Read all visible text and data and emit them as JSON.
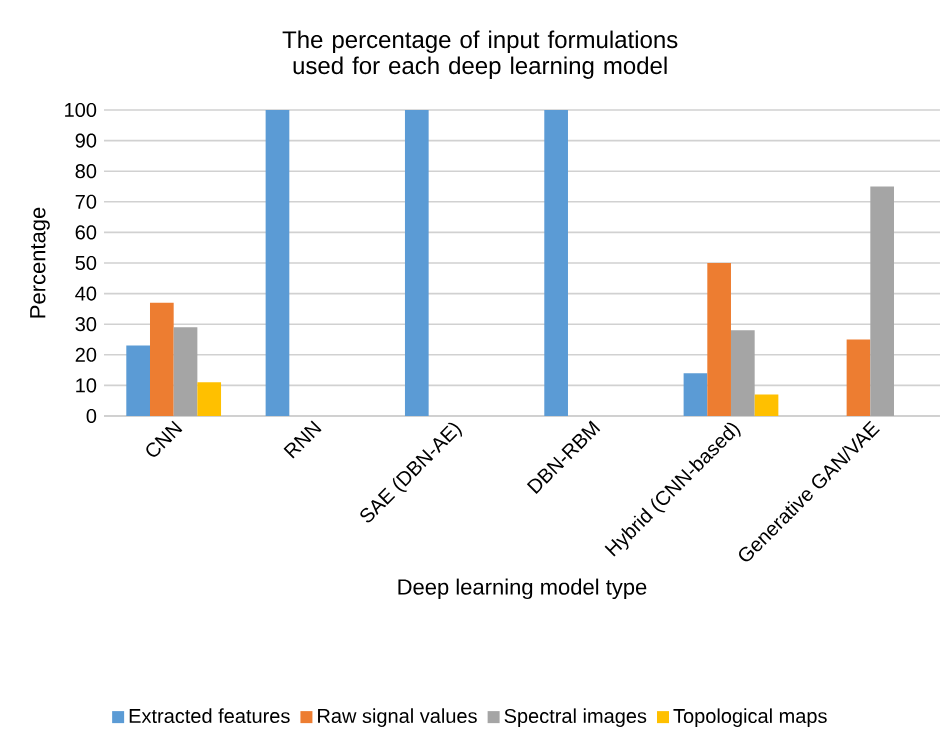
{
  "chart_data": {
    "type": "bar",
    "title": "The percentage of input formulations used for each deep learning model",
    "xlabel": "Deep learning model type",
    "ylabel": "Percentage",
    "categories": [
      "CNN",
      "RNN",
      "SAE (DBN-AE)",
      "DBN-RBM",
      "Hybrid (CNN-based)",
      "Generative GAN/VAE"
    ],
    "series": [
      {
        "name": "Extracted features",
        "color": "#5b9bd5",
        "values": [
          23,
          100,
          100,
          100,
          14,
          0
        ]
      },
      {
        "name": "Raw signal values",
        "color": "#ed7d31",
        "values": [
          37,
          0,
          0,
          0,
          50,
          25
        ]
      },
      {
        "name": "Spectral images",
        "color": "#a5a5a5",
        "values": [
          29,
          0,
          0,
          0,
          28,
          75
        ]
      },
      {
        "name": "Topological maps",
        "color": "#ffc000",
        "values": [
          11,
          0,
          0,
          0,
          7,
          0
        ]
      }
    ],
    "ylim": [
      0,
      100
    ],
    "yticks": [
      0,
      10,
      20,
      30,
      40,
      50,
      60,
      70,
      80,
      90,
      100
    ],
    "grid": "y",
    "legend": "bottom"
  }
}
